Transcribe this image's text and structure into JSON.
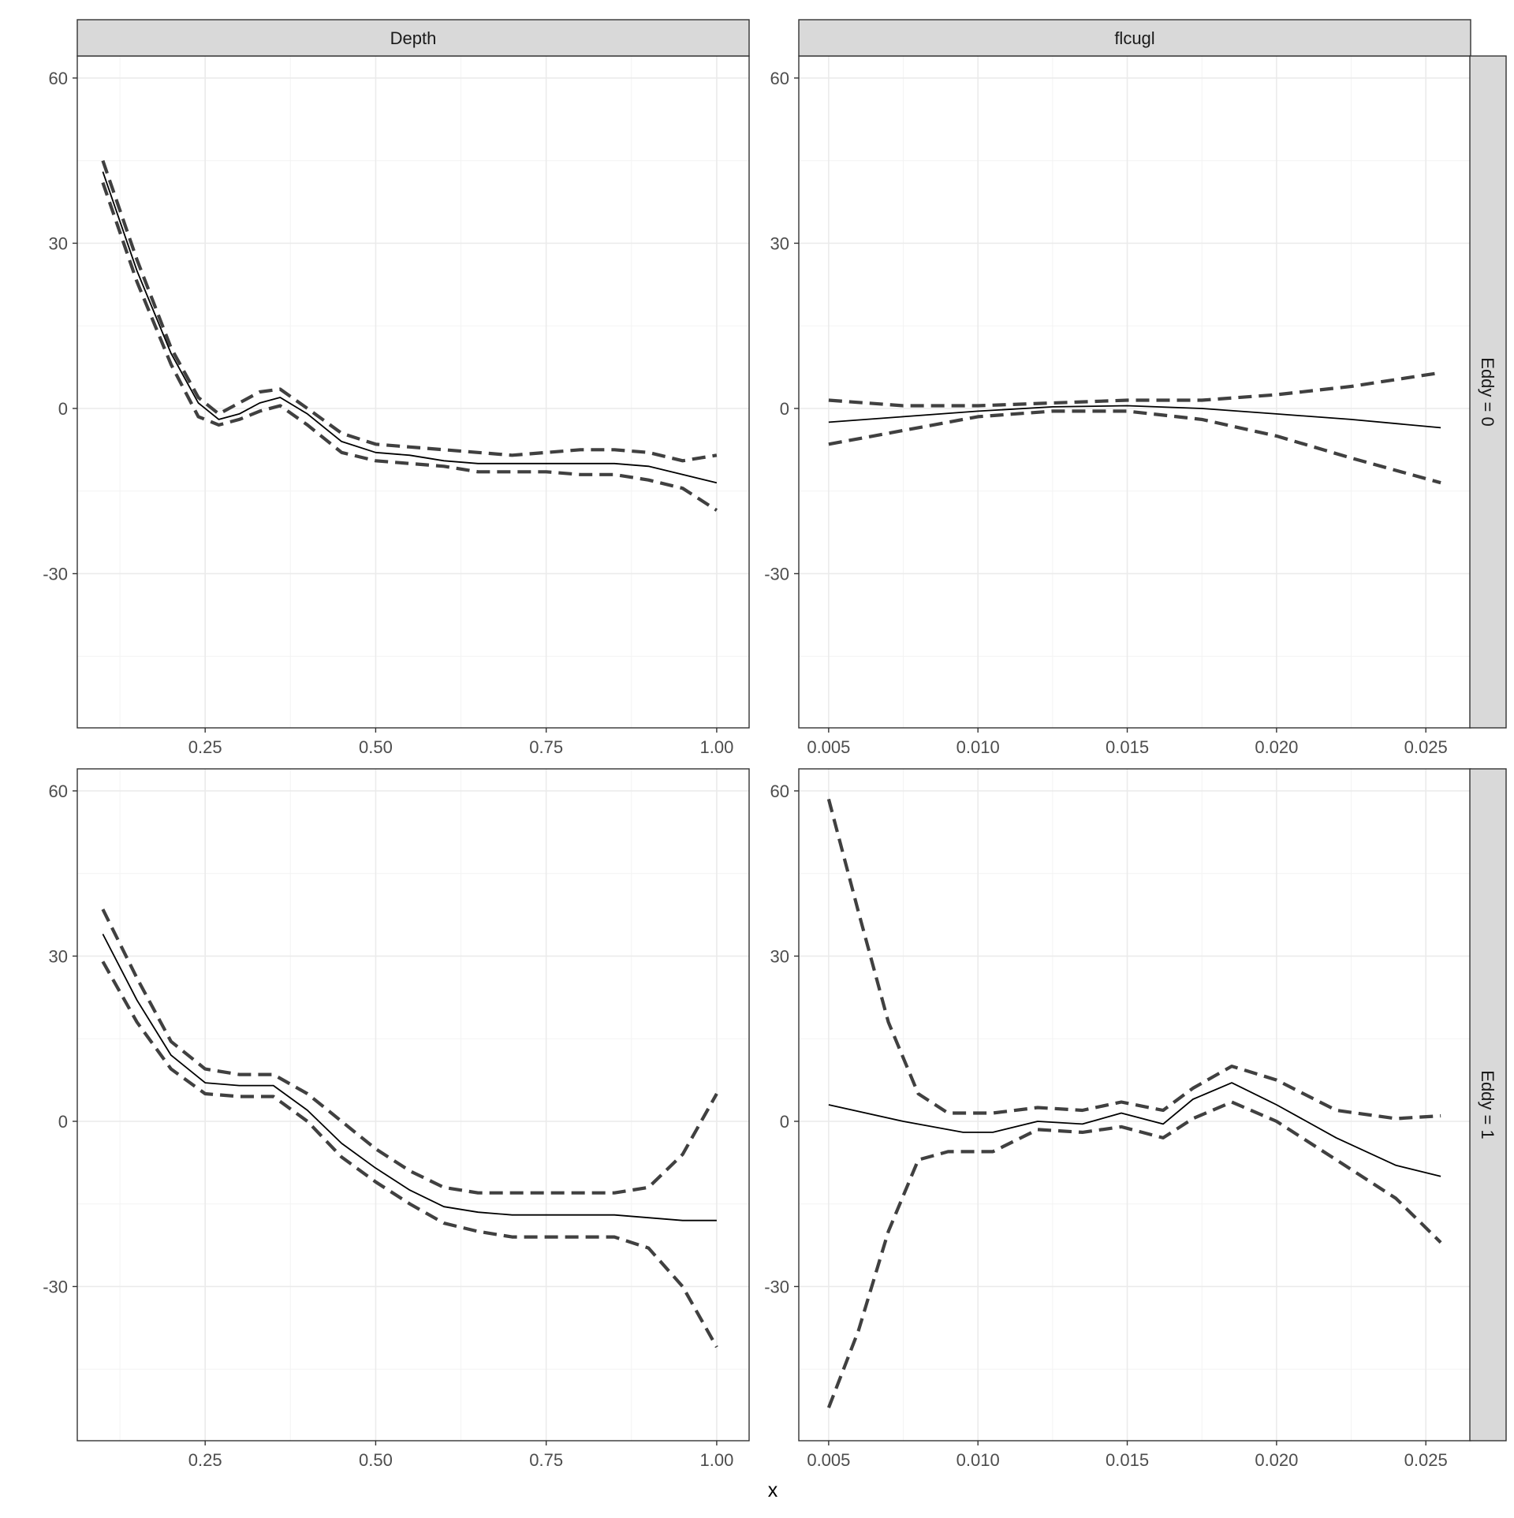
{
  "chart_data": {
    "type": "line",
    "xlabel": "x",
    "ylabel": "",
    "facet_columns": [
      "Depth",
      "flcugl"
    ],
    "facet_rows": [
      "Eddy = 0",
      "Eddy = 1"
    ],
    "ylim": [
      -58,
      64
    ],
    "y_ticks": [
      -30,
      0,
      30,
      60
    ],
    "y_tick_labels": [
      "-30",
      "0",
      "30",
      "60"
    ],
    "x_axes": {
      "Depth": {
        "xlim": [
          0.0625,
          1.0475
        ],
        "ticks": [
          0.25,
          0.5,
          0.75,
          1.0
        ],
        "tick_labels": [
          "0.25",
          "0.50",
          "0.75",
          "1.00"
        ]
      },
      "flcugl": {
        "xlim": [
          0.004,
          0.0265
        ],
        "ticks": [
          0.005,
          0.01,
          0.015,
          0.02,
          0.025
        ],
        "tick_labels": [
          "0.005",
          "0.010",
          "0.015",
          "0.020",
          "0.025"
        ]
      }
    },
    "grid": true,
    "legend": "none",
    "panels": [
      {
        "column": "Depth",
        "row": "Eddy = 0",
        "series": [
          {
            "role": "fit",
            "x": [
              0.1,
              0.15,
              0.2,
              0.24,
              0.27,
              0.3,
              0.33,
              0.36,
              0.4,
              0.45,
              0.5,
              0.55,
              0.6,
              0.65,
              0.7,
              0.75,
              0.8,
              0.85,
              0.9,
              0.95,
              1.0
            ],
            "y": [
              43,
              25,
              10,
              1,
              -2,
              -1,
              1,
              2,
              -1,
              -6,
              -8,
              -8.5,
              -9.5,
              -10,
              -10,
              -10,
              -10,
              -10,
              -10.5,
              -12,
              -13.5
            ]
          },
          {
            "role": "ci_upper",
            "x": [
              0.1,
              0.15,
              0.2,
              0.24,
              0.27,
              0.3,
              0.33,
              0.36,
              0.4,
              0.45,
              0.5,
              0.55,
              0.6,
              0.65,
              0.7,
              0.75,
              0.8,
              0.85,
              0.9,
              0.95,
              1.0
            ],
            "y": [
              45,
              27,
              11,
              2,
              -1,
              1,
              3,
              3.5,
              0,
              -4.5,
              -6.5,
              -7,
              -7.5,
              -8,
              -8.5,
              -8,
              -7.5,
              -7.5,
              -8,
              -9.5,
              -8.5
            ]
          },
          {
            "role": "ci_lower",
            "x": [
              0.1,
              0.15,
              0.2,
              0.24,
              0.27,
              0.3,
              0.33,
              0.36,
              0.4,
              0.45,
              0.5,
              0.55,
              0.6,
              0.65,
              0.7,
              0.75,
              0.8,
              0.85,
              0.9,
              0.95,
              1.0
            ],
            "y": [
              41,
              23,
              8,
              -1.5,
              -3,
              -2,
              -0.5,
              0.5,
              -3,
              -8,
              -9.5,
              -10,
              -10.5,
              -11.5,
              -11.5,
              -11.5,
              -12,
              -12,
              -13,
              -14.5,
              -18.5
            ]
          }
        ]
      },
      {
        "column": "flcugl",
        "row": "Eddy = 0",
        "series": [
          {
            "role": "fit",
            "x": [
              0.005,
              0.0075,
              0.01,
              0.0125,
              0.015,
              0.0175,
              0.02,
              0.0225,
              0.0255
            ],
            "y": [
              -2.5,
              -1.5,
              -0.5,
              0.3,
              0.5,
              0,
              -1,
              -2,
              -3.5
            ]
          },
          {
            "role": "ci_upper",
            "x": [
              0.005,
              0.0075,
              0.01,
              0.0125,
              0.015,
              0.0175,
              0.02,
              0.0225,
              0.0255
            ],
            "y": [
              1.5,
              0.5,
              0.5,
              1,
              1.5,
              1.5,
              2.5,
              4,
              6.5
            ]
          },
          {
            "role": "ci_lower",
            "x": [
              0.005,
              0.0075,
              0.01,
              0.0125,
              0.015,
              0.0175,
              0.02,
              0.0225,
              0.0255
            ],
            "y": [
              -6.5,
              -4,
              -1.5,
              -0.5,
              -0.5,
              -2,
              -5,
              -9,
              -13.5
            ]
          }
        ]
      },
      {
        "column": "Depth",
        "row": "Eddy = 1",
        "series": [
          {
            "role": "fit",
            "x": [
              0.1,
              0.15,
              0.2,
              0.25,
              0.3,
              0.35,
              0.4,
              0.45,
              0.5,
              0.55,
              0.6,
              0.65,
              0.7,
              0.75,
              0.8,
              0.85,
              0.9,
              0.95,
              1.0
            ],
            "y": [
              34,
              22,
              12,
              7,
              6.5,
              6.5,
              2,
              -4,
              -8.5,
              -12.5,
              -15.5,
              -16.5,
              -17,
              -17,
              -17,
              -17,
              -17.5,
              -18,
              -18
            ]
          },
          {
            "role": "ci_upper",
            "x": [
              0.1,
              0.15,
              0.2,
              0.25,
              0.3,
              0.35,
              0.4,
              0.45,
              0.5,
              0.55,
              0.6,
              0.65,
              0.7,
              0.75,
              0.8,
              0.85,
              0.9,
              0.95,
              1.0
            ],
            "y": [
              38.5,
              26,
              14.5,
              9.5,
              8.5,
              8.5,
              5,
              0,
              -5,
              -9,
              -12,
              -13,
              -13,
              -13,
              -13,
              -13,
              -12,
              -6,
              5
            ]
          },
          {
            "role": "ci_lower",
            "x": [
              0.1,
              0.15,
              0.2,
              0.25,
              0.3,
              0.35,
              0.4,
              0.45,
              0.5,
              0.55,
              0.6,
              0.65,
              0.7,
              0.75,
              0.8,
              0.85,
              0.9,
              0.95,
              1.0
            ],
            "y": [
              29,
              18,
              9.5,
              5,
              4.5,
              4.5,
              0,
              -6.5,
              -11,
              -15,
              -18.5,
              -20,
              -21,
              -21,
              -21,
              -21,
              -23,
              -30,
              -41
            ]
          }
        ]
      },
      {
        "column": "flcugl",
        "row": "Eddy = 1",
        "series": [
          {
            "role": "fit",
            "x": [
              0.005,
              0.0075,
              0.0095,
              0.0105,
              0.012,
              0.0135,
              0.0148,
              0.0162,
              0.0172,
              0.0185,
              0.02,
              0.022,
              0.024,
              0.0255
            ],
            "y": [
              3,
              0,
              -2,
              -2,
              0,
              -0.5,
              1.5,
              -0.5,
              4,
              7,
              3,
              -3,
              -8,
              -10
            ]
          },
          {
            "role": "ci_upper",
            "x": [
              0.005,
              0.006,
              0.007,
              0.008,
              0.009,
              0.0105,
              0.012,
              0.0135,
              0.0148,
              0.0162,
              0.0172,
              0.0185,
              0.02,
              0.022,
              0.024,
              0.0255
            ],
            "y": [
              58.5,
              38,
              18,
              5,
              1.5,
              1.5,
              2.5,
              2,
              3.5,
              2,
              6,
              10,
              7.5,
              2,
              0.5,
              1
            ]
          },
          {
            "role": "ci_lower",
            "x": [
              0.005,
              0.006,
              0.007,
              0.008,
              0.009,
              0.0105,
              0.012,
              0.0135,
              0.0148,
              0.0162,
              0.0172,
              0.0185,
              0.02,
              0.022,
              0.024,
              0.0255
            ],
            "y": [
              -52,
              -38,
              -20,
              -7,
              -5.5,
              -5.5,
              -1.5,
              -2,
              -1,
              -3,
              0.5,
              3.5,
              0,
              -7,
              -14,
              -22
            ]
          }
        ]
      }
    ]
  }
}
